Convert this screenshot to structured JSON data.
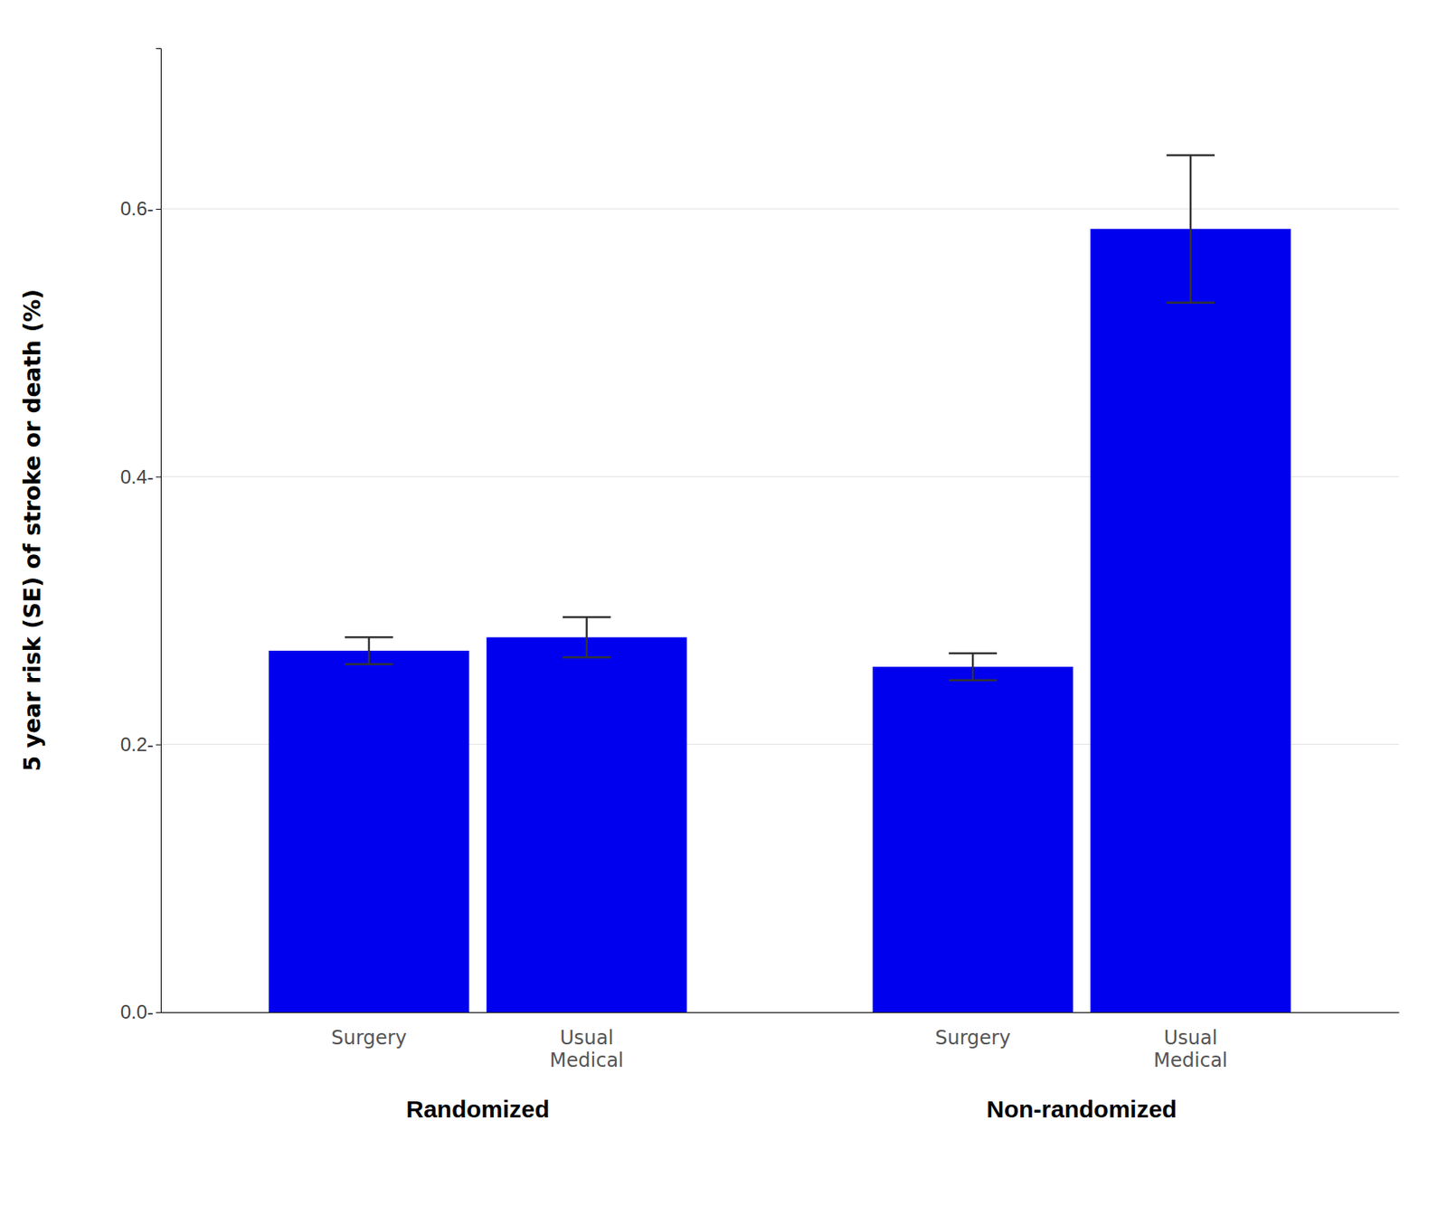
{
  "chart_data": {
    "type": "bar",
    "y_label": "5 year risk (SE) of stroke or death (%)",
    "categories": [
      "Randomized",
      "Non-randomized"
    ],
    "series": [
      {
        "name": "Surgery",
        "color": "#0000EE",
        "values": [
          0.27,
          0.258
        ],
        "errors": [
          0.01,
          0.01
        ]
      },
      {
        "name": "Usual\nMedical",
        "color": "#0000EE",
        "values": [
          0.28,
          0.585
        ],
        "errors": [
          0.015,
          0.055
        ]
      }
    ],
    "ylim": [
      0.0,
      0.72
    ],
    "yticks": [
      {
        "value": 0.0,
        "label": "0.0-"
      },
      {
        "value": 0.2,
        "label": "0.2-"
      },
      {
        "value": 0.4,
        "label": "0.4-"
      },
      {
        "value": 0.6,
        "label": "0.6-"
      }
    ],
    "grid": true
  }
}
